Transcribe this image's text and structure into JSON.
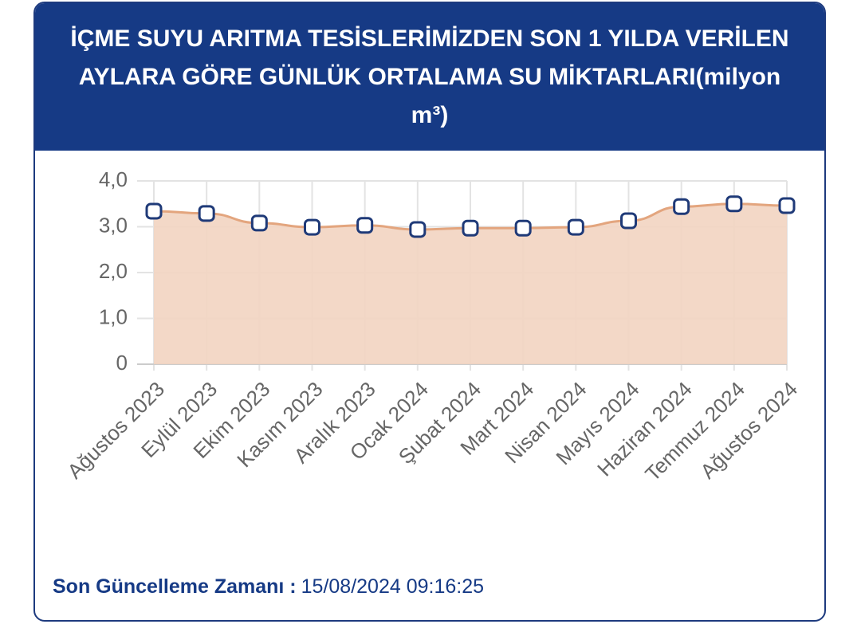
{
  "chart_data": {
    "type": "area",
    "title": "İÇME SUYU ARITMA TESİSLERİMİZDEN SON 1 YILDA VERİLEN AYLARA GÖRE GÜNLÜK ORTALAMA SU MİKTARLARI(milyon m³)",
    "categories": [
      "Ağustos 2023",
      "Eylül 2023",
      "Ekim 2023",
      "Kasım 2023",
      "Aralık 2023",
      "Ocak 2024",
      "Şubat 2024",
      "Mart 2024",
      "Nisan 2024",
      "Mayıs 2024",
      "Haziran 2024",
      "Temmuz 2024",
      "Ağustos 2024"
    ],
    "values": [
      3.34,
      3.29,
      3.08,
      2.99,
      3.03,
      2.94,
      2.97,
      2.97,
      2.99,
      3.13,
      3.44,
      3.5,
      3.46
    ],
    "color": "#e3a57e",
    "fill": "#f2d4c1",
    "marker_color": "#1f3a78",
    "ylim": [
      0,
      4
    ],
    "yticks": [
      0,
      {
        "value": 1,
        "label": "1,0"
      },
      {
        "value": 2,
        "label": "2,0"
      },
      {
        "value": 3,
        "label": "3,0"
      },
      {
        "value": 4,
        "label": "4,0"
      }
    ],
    "grid": true
  },
  "footer": {
    "label": "Son Güncelleme Zamanı :",
    "value": "15/08/2024 09:16:25"
  }
}
